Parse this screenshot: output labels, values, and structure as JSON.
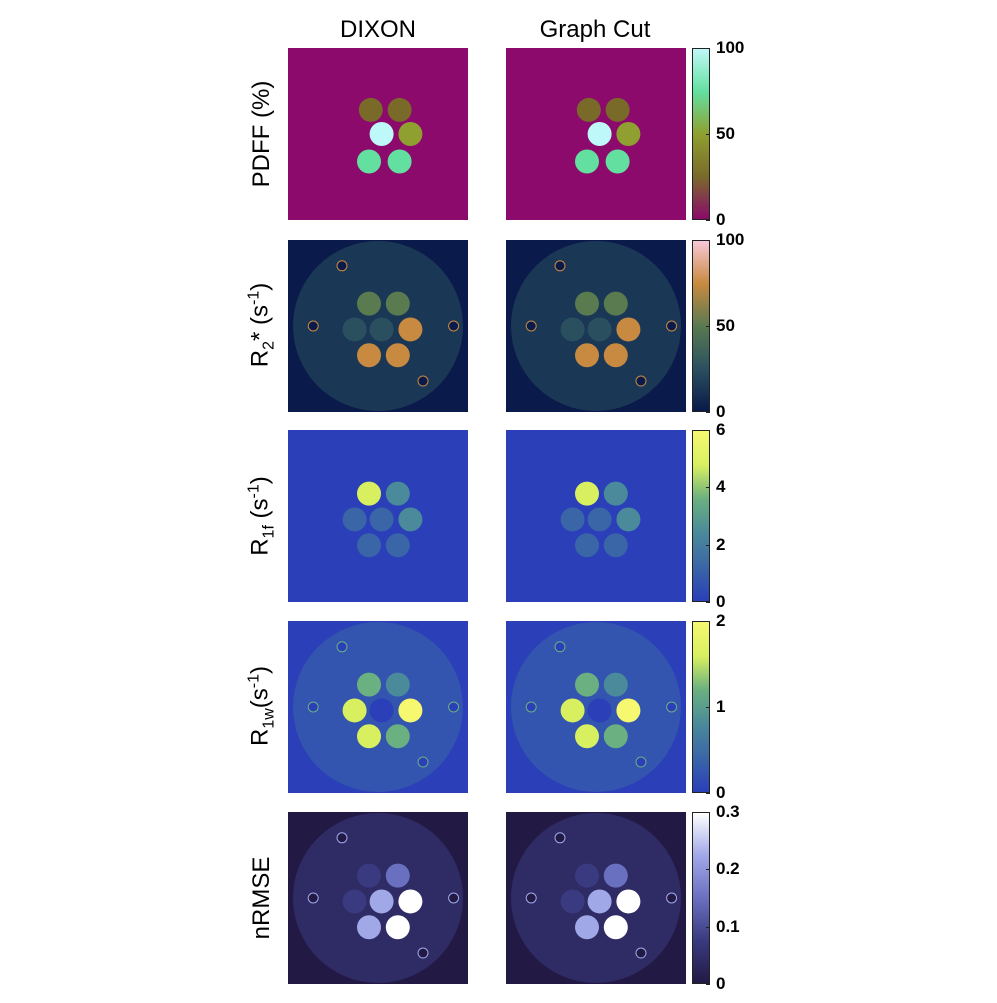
{
  "columns": {
    "dixon": "DIXON",
    "graph_cut": "Graph Cut"
  },
  "rows": [
    {
      "id": "pdff",
      "label_main": "PDFF (%)",
      "background": "#8b0a6b",
      "colormap": [
        "#8b0a6b",
        "#7a6a2a",
        "#8fa030",
        "#63e0a0",
        "#bff8f8"
      ],
      "ticks": [
        "100",
        "50",
        "0"
      ]
    },
    {
      "id": "r2star",
      "label_r": "R",
      "label_sub": "2",
      "label_rest": "* (s",
      "label_sup": "-1",
      "label_end": ")",
      "background": "#0a1a4a",
      "colormap": [
        "#0a1a4a",
        "#2a5060",
        "#5a7a50",
        "#c88a40",
        "#f8c8d8"
      ],
      "ticks": [
        "100",
        "50",
        "0"
      ]
    },
    {
      "id": "r1f",
      "label_r": "R",
      "label_sub": "1f",
      "label_rest": " (s",
      "label_sup": "-1",
      "label_end": ")",
      "background": "#2a3fb8",
      "colormap": [
        "#2a3fb8",
        "#3a66a8",
        "#4a8a9a",
        "#6ab080",
        "#d8f060",
        "#f6f870"
      ],
      "ticks": [
        "6",
        "4",
        "2",
        "0"
      ]
    },
    {
      "id": "r1w",
      "label_r": "R",
      "label_sub": "1w",
      "label_rest": "(s",
      "label_sup": "-1",
      "label_end": ")",
      "background": "#2a3fb8",
      "colormap": [
        "#2a3fb8",
        "#3a66a8",
        "#4a8a9a",
        "#6ab080",
        "#d8f060",
        "#f6f870"
      ],
      "ticks": [
        "2",
        "1",
        "0"
      ]
    },
    {
      "id": "nrmse",
      "label_main": "nRMSE",
      "background": "#221a45",
      "colormap": [
        "#221a45",
        "#3a3a80",
        "#6a70c0",
        "#a0a8e8",
        "#ffffff"
      ],
      "ticks": [
        "0.3",
        "0.2",
        "0.1",
        "0"
      ]
    }
  ]
}
